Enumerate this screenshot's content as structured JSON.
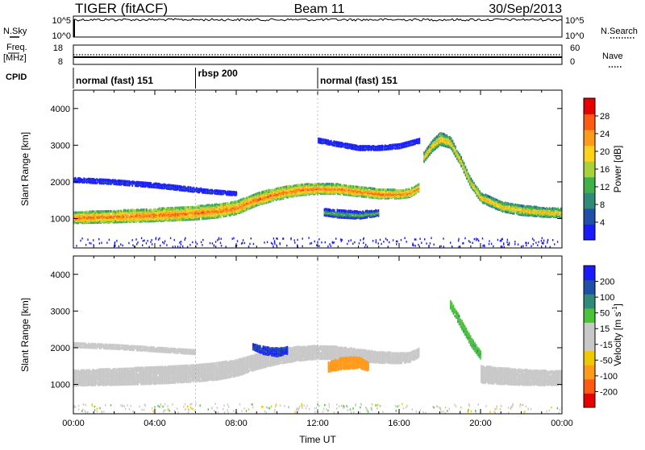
{
  "header": {
    "title": "TIGER (fitACF)",
    "beam": "Beam 11",
    "date": "30/Sep/2013"
  },
  "sky_panel": {
    "left_label": "N.Sky",
    "right_label": "N.Search",
    "ticks": [
      "10^5",
      "10^0"
    ]
  },
  "freq_panel": {
    "left_label_1": "Freq.",
    "left_label_2": "[MHz]",
    "left_ticks": [
      "18",
      "8"
    ],
    "right_label": "Nave",
    "right_ticks": [
      "60",
      "0"
    ]
  },
  "cpid": {
    "label": "CPID",
    "segments": [
      {
        "label": "normal (fast) 151",
        "start_hour": 0,
        "end_hour": 6
      },
      {
        "label": "rbsp 200",
        "start_hour": 6,
        "end_hour": 12
      },
      {
        "label": "normal (fast) 151",
        "start_hour": 12,
        "end_hour": 24
      }
    ]
  },
  "colors": {
    "scale_power": [
      "#1a1aff",
      "#1f4fa8",
      "#2f8a7a",
      "#3fb04a",
      "#a8d23a",
      "#ffd21a",
      "#ff9a1a",
      "#ff5a14",
      "#e60000"
    ],
    "scale_velocity": [
      "#e60000",
      "#ff5a14",
      "#ff9a1a",
      "#f0c800",
      "#c8c8c8",
      "#c8c8c8",
      "#4cc23a",
      "#2f8a7a",
      "#1f4fa8",
      "#1a1aff"
    ],
    "background": "#ffffff"
  },
  "chart_data": [
    {
      "type": "heatmap",
      "name": "power-panel",
      "xlabel": "",
      "ylabel": "Slant Range [km]",
      "xlim": [
        0,
        24
      ],
      "ylim": [
        200,
        4500
      ],
      "yticks": [
        1000,
        2000,
        3000,
        4000
      ],
      "colorbar_label": "Power [dB]",
      "colorbar_ticks": [
        "4",
        "8",
        "12",
        "16",
        "20",
        "24",
        "28"
      ],
      "colorbar_range": [
        0,
        32
      ],
      "bands": [
        {
          "x": [
            0,
            2,
            4,
            6,
            7,
            8,
            9,
            10,
            11,
            12,
            13,
            14,
            15,
            16,
            16.5,
            17
          ],
          "y_center": [
            1050,
            1080,
            1120,
            1180,
            1230,
            1320,
            1550,
            1700,
            1800,
            1840,
            1830,
            1760,
            1700,
            1690,
            1720,
            1880
          ],
          "thickness": [
            300,
            320,
            340,
            360,
            360,
            350,
            330,
            320,
            300,
            280,
            270,
            260,
            250,
            230,
            220,
            200
          ],
          "value": 26
        },
        {
          "x": [
            0,
            2,
            4,
            6,
            8
          ],
          "y_center": [
            2080,
            2020,
            1930,
            1800,
            1700
          ],
          "thickness": [
            120,
            120,
            120,
            110,
            100
          ],
          "value": 6
        },
        {
          "x": [
            12,
            13,
            14,
            15,
            16,
            17
          ],
          "y_center": [
            3150,
            3050,
            2950,
            2950,
            3000,
            3150
          ],
          "thickness": [
            110,
            120,
            120,
            120,
            120,
            120
          ],
          "value": 6
        },
        {
          "x": [
            17.2,
            17.6,
            18,
            18.5,
            19,
            19.5,
            20,
            21,
            22,
            23,
            24
          ],
          "y_center": [
            2700,
            3000,
            3200,
            3100,
            2600,
            2000,
            1600,
            1350,
            1250,
            1200,
            1180
          ],
          "thickness": [
            260,
            300,
            340,
            300,
            260,
            240,
            250,
            260,
            260,
            250,
            240
          ],
          "value": 22
        },
        {
          "x": [
            12.3,
            13,
            14,
            15
          ],
          "y_center": [
            1200,
            1150,
            1120,
            1180
          ],
          "thickness": [
            180,
            200,
            200,
            160
          ],
          "value": 14
        }
      ]
    },
    {
      "type": "heatmap",
      "name": "velocity-panel",
      "xlabel": "Time UT",
      "ylabel": "Slant Range [km]",
      "xlim": [
        0,
        24
      ],
      "ylim": [
        200,
        4500
      ],
      "yticks": [
        1000,
        2000,
        3000,
        4000
      ],
      "xtick_labels": [
        "00:00",
        "04:00",
        "08:00",
        "12:00",
        "16:00",
        "20:00",
        "00:00"
      ],
      "colorbar_label": "Velocity [m s",
      "colorbar_label_sup": "-1",
      "colorbar_label_end": "]",
      "colorbar_ticks": [
        "-200",
        "-100",
        "-50",
        "-15",
        "15",
        "50",
        "100",
        "200"
      ],
      "bands": [
        {
          "x": [
            0,
            2,
            4,
            6,
            7,
            8,
            9,
            10,
            11,
            12,
            13,
            14,
            15,
            16,
            16.5,
            17
          ],
          "y_center": [
            1200,
            1230,
            1270,
            1330,
            1380,
            1470,
            1650,
            1780,
            1860,
            1900,
            1880,
            1820,
            1760,
            1740,
            1760,
            1900
          ],
          "thickness": [
            420,
            440,
            460,
            460,
            460,
            440,
            420,
            400,
            380,
            360,
            340,
            320,
            300,
            280,
            260,
            240
          ],
          "value": 0
        },
        {
          "x": [
            0,
            2,
            4,
            6
          ],
          "y_center": [
            2100,
            2050,
            1980,
            1900
          ],
          "thickness": [
            120,
            120,
            120,
            110
          ],
          "value": 0
        },
        {
          "x": [
            8.8,
            9.3,
            10,
            10.5
          ],
          "y_center": [
            2050,
            1950,
            1900,
            1950
          ],
          "thickness": [
            150,
            200,
            220,
            180
          ],
          "value": 200
        },
        {
          "x": [
            12.5,
            13.2,
            14,
            14.5
          ],
          "y_center": [
            1500,
            1600,
            1620,
            1500
          ],
          "thickness": [
            260,
            320,
            300,
            220
          ],
          "value": -80
        },
        {
          "x": [
            18.5,
            19,
            19.5,
            20
          ],
          "y_center": [
            3200,
            2700,
            2200,
            1800
          ],
          "thickness": [
            220,
            240,
            240,
            220
          ],
          "value": 40
        },
        {
          "x": [
            20,
            21,
            22,
            23,
            24
          ],
          "y_center": [
            1300,
            1250,
            1220,
            1200,
            1200
          ],
          "thickness": [
            460,
            440,
            420,
            400,
            380
          ],
          "value": 0
        }
      ]
    }
  ]
}
